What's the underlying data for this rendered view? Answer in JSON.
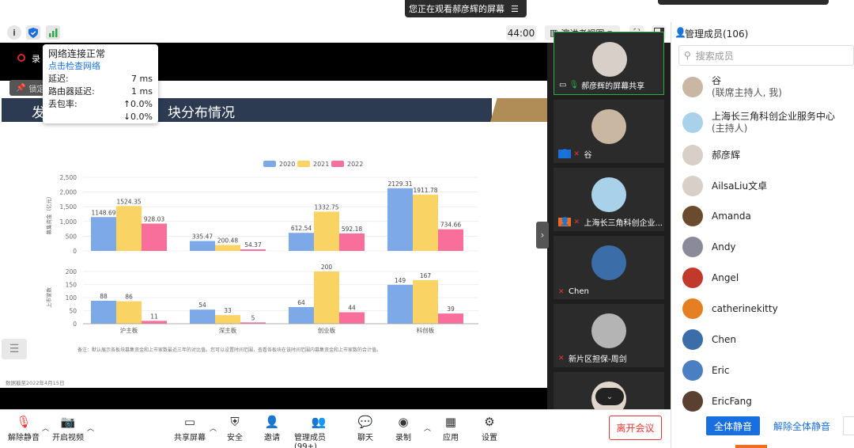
{
  "banner": {
    "text": "您正在观看郝彦辉的屏幕",
    "menu_icon": "menu-icon"
  },
  "toolbar": {
    "timer": "44:00",
    "view_mode": "演讲者视图"
  },
  "network_popup": {
    "status": "网络连接正常",
    "check_link": "点击检查网络",
    "rows": [
      {
        "label": "延迟:",
        "value": "7 ms"
      },
      {
        "label": "路由器延迟:",
        "value": "1 ms"
      },
      {
        "label": "丢包率:",
        "value": "↑0.0%"
      },
      {
        "label": "",
        "value": "↓0.0%"
      }
    ]
  },
  "stage": {
    "rec_label": "录",
    "lock_label": "锁定"
  },
  "slide": {
    "title_left": "发",
    "title_right": "块分布情况",
    "note": "备注：默认展示各板块募集资金和上市家数最近三年的对比值。您可以设置时间范围，查看各板块在该时间范围内募集资金和上市家数的合计值。",
    "date_note": "数据截至2022年4月15日"
  },
  "chart_data": [
    {
      "type": "bar",
      "categories": [
        "沪主板",
        "深主板",
        "创业板",
        "科创板"
      ],
      "ylabel": "募集资金（亿元）",
      "ylim": [
        0,
        2500
      ],
      "yticks": [
        "2,500",
        "2,000",
        "1,500",
        "1,000",
        "500",
        "0"
      ],
      "legend_position": "top-center",
      "series": [
        {
          "name": "2020",
          "color": "#7ea9e8",
          "values": [
            1148.69,
            335.47,
            612.54,
            2129.31
          ]
        },
        {
          "name": "2021",
          "color": "#f9d465",
          "values": [
            1524.35,
            200.48,
            1332.75,
            1911.78
          ]
        },
        {
          "name": "2022",
          "color": "#f76f9a",
          "values": [
            928.03,
            54.37,
            592.18,
            734.66
          ]
        }
      ]
    },
    {
      "type": "bar",
      "categories": [
        "沪主板",
        "深主板",
        "创业板",
        "科创板"
      ],
      "ylabel": "上市家数",
      "ylim": [
        0,
        200
      ],
      "yticks": [
        "200",
        "150",
        "100",
        "50",
        "0"
      ],
      "series": [
        {
          "name": "2020",
          "color": "#7ea9e8",
          "values": [
            88,
            54,
            64,
            149
          ]
        },
        {
          "name": "2021",
          "color": "#f9d465",
          "values": [
            86,
            33,
            200,
            167
          ]
        },
        {
          "name": "2022",
          "color": "#f76f9a",
          "values": [
            11,
            5,
            44,
            39
          ]
        }
      ]
    }
  ],
  "video_tiles": [
    {
      "name": "郝彦辉的屏幕共享",
      "avatar_color": "#d8cfc8"
    },
    {
      "name": "谷",
      "avatar_color": "#c9b6a3"
    },
    {
      "name": "上海长三角科创企业...",
      "avatar_color": "#a9d2ea"
    },
    {
      "name": "Chen",
      "avatar_color": "#3b6ea8"
    },
    {
      "name": "新片区担保-周剑",
      "avatar_color": "#b4b4b4"
    },
    {
      "name": "",
      "avatar_color": "#e0d6cc"
    }
  ],
  "members": {
    "title": "管理成员(106)",
    "search_placeholder": "搜索成员",
    "list": [
      {
        "name": "谷",
        "role": "(联席主持人, 我)",
        "avatar_color": "#c9b6a3"
      },
      {
        "name": "上海长三角科创企业服务中心",
        "role": "(主持人)",
        "avatar_color": "#a9d2ea"
      },
      {
        "name": "郝彦辉",
        "role": "",
        "avatar_color": "#d8cfc8"
      },
      {
        "name": "AilsaLiu文卓",
        "role": "",
        "avatar_color": "#d9cfc9"
      },
      {
        "name": "Amanda",
        "role": "",
        "avatar_color": "#6b4b2e"
      },
      {
        "name": "Andy",
        "role": "",
        "avatar_color": "#8a8a9a"
      },
      {
        "name": "Angel",
        "role": "",
        "avatar_color": "#c0392b"
      },
      {
        "name": "catherinekitty",
        "role": "",
        "avatar_color": "#e67e22"
      },
      {
        "name": "Chen",
        "role": "",
        "avatar_color": "#3b6ea8"
      },
      {
        "name": "Eric",
        "role": "",
        "avatar_color": "#4a7fc1"
      },
      {
        "name": "EricFang",
        "role": "",
        "avatar_color": "#5a4030"
      }
    ],
    "mute_all": "全体静音",
    "unmute_all": "解除全体静音"
  },
  "bottom_bar": {
    "items": [
      {
        "label": "解除静音",
        "icon": "mic-off-icon"
      },
      {
        "label": "开启视频",
        "icon": "camera-off-icon"
      },
      {
        "label": "共享屏幕",
        "icon": "share-screen-icon"
      },
      {
        "label": "安全",
        "icon": "shield-icon"
      },
      {
        "label": "邀请",
        "icon": "invite-icon"
      },
      {
        "label": "管理成员(99+)",
        "icon": "members-icon"
      },
      {
        "label": "聊天",
        "icon": "chat-icon"
      },
      {
        "label": "录制",
        "icon": "record-icon"
      },
      {
        "label": "应用",
        "icon": "apps-icon"
      },
      {
        "label": "设置",
        "icon": "settings-icon"
      }
    ],
    "leave": "离开会议"
  }
}
